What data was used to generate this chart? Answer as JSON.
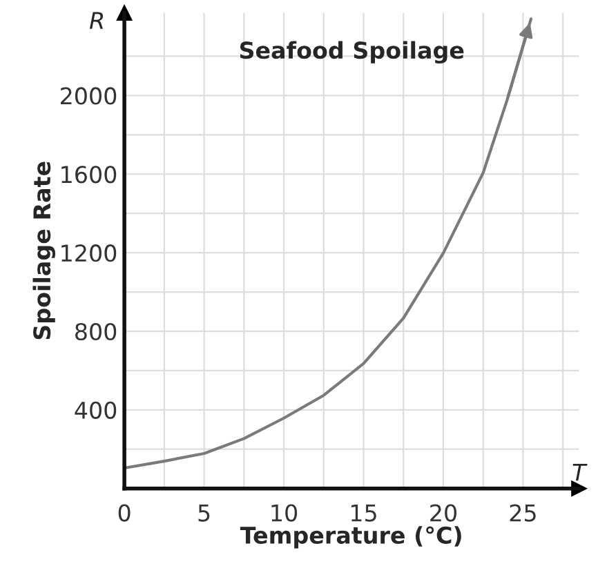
{
  "chart_data": {
    "type": "line",
    "title": "Seafood Spoilage",
    "xlabel": "Temperature (°C)",
    "ylabel": "Spoilage Rate",
    "annotations": [
      "R",
      "T"
    ],
    "x": [
      0,
      2.5,
      5,
      7.5,
      10,
      12.5,
      15,
      17.5,
      20,
      22.5,
      24,
      25.5
    ],
    "series": [
      {
        "color": "#7a7a7a",
        "values": [
          104,
          139,
          178,
          254,
          358,
          474,
          636,
          867,
          1198,
          1607,
          1977,
          2390
        ]
      }
    ],
    "xlim": [
      0,
      28.5
    ],
    "ylim": [
      0,
      2420
    ],
    "xticks": [
      {
        "value": 0,
        "label": "0"
      },
      {
        "value": 2.5,
        "label": null
      },
      5,
      {
        "value": 7.5,
        "label": null
      },
      10,
      {
        "value": 12.5,
        "label": null
      },
      15,
      {
        "value": 17.5,
        "label": null
      },
      20,
      {
        "value": 22.5,
        "label": null
      },
      25,
      {
        "value": 27.5,
        "label": null
      }
    ],
    "yticks": [
      {
        "value": 200,
        "label": null
      },
      400,
      {
        "value": 600,
        "label": null
      },
      800,
      {
        "value": 1000,
        "label": null
      },
      1200,
      {
        "value": 1400,
        "label": null
      },
      1600,
      {
        "value": 1800,
        "label": null
      },
      2000,
      {
        "value": 2200,
        "label": null
      }
    ],
    "grid": true,
    "marker": "none",
    "line_style": "solid",
    "legend": false
  }
}
